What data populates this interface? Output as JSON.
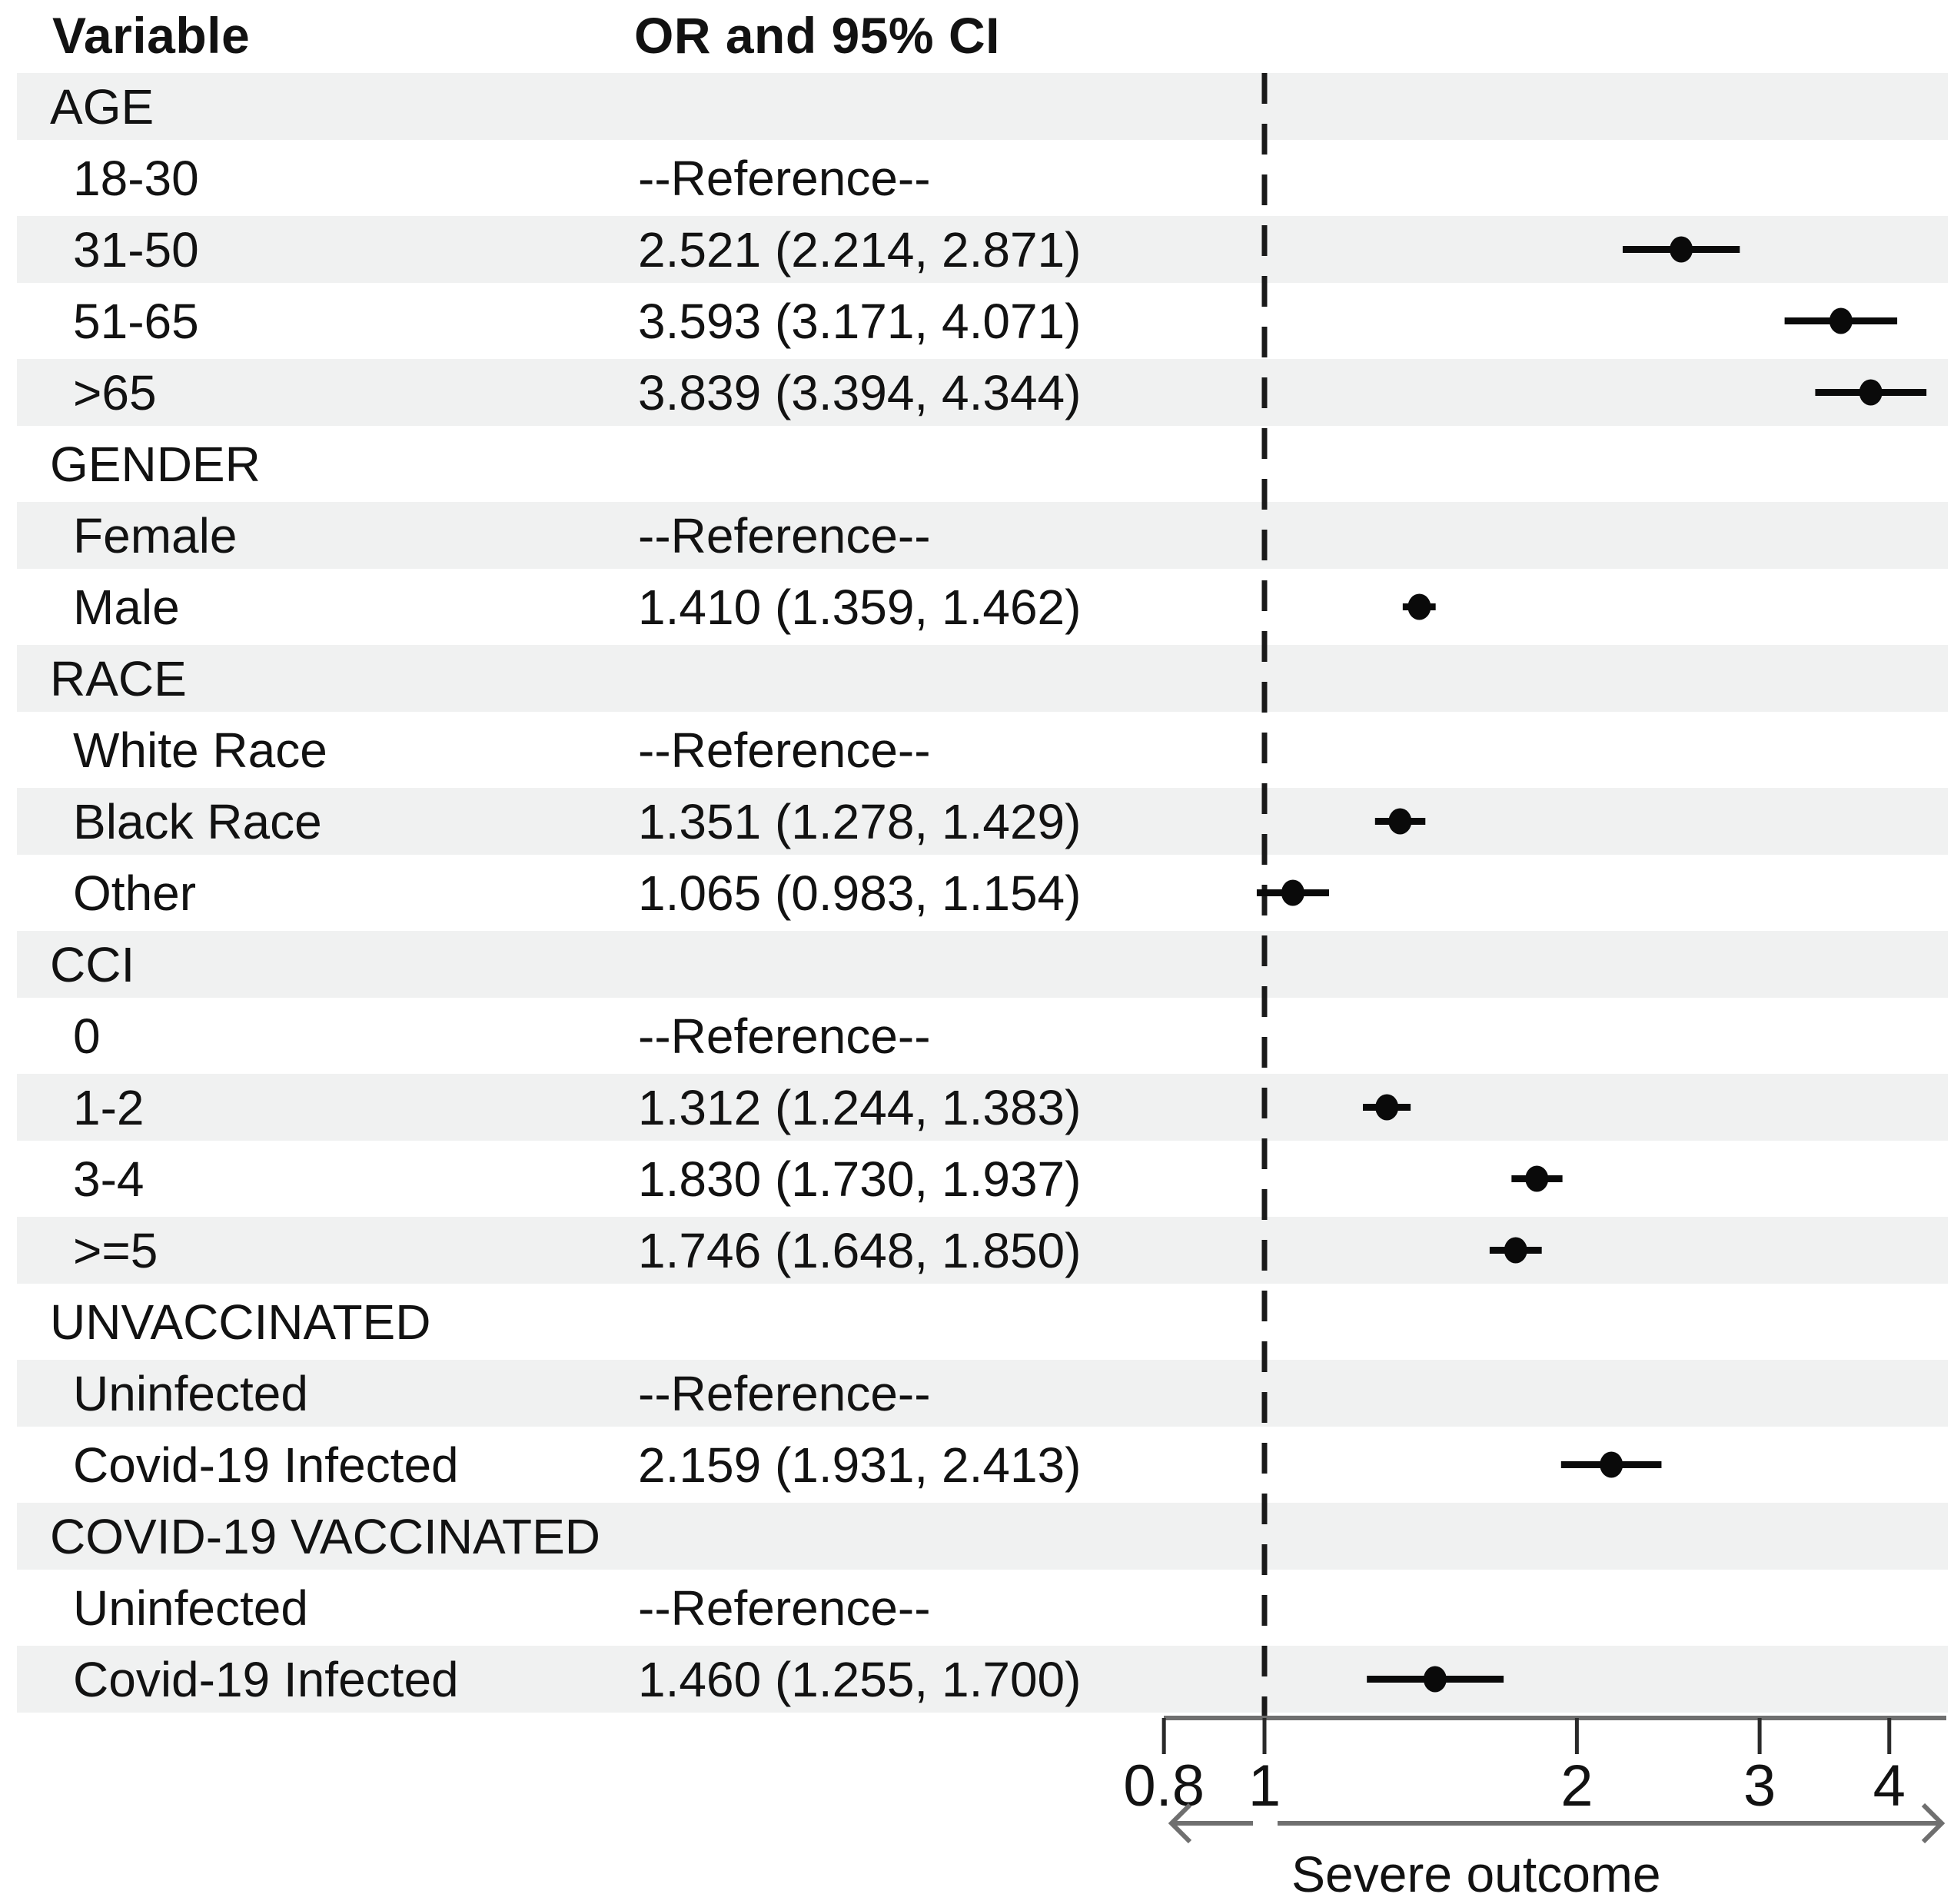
{
  "header": {
    "variable_col": "Variable",
    "or_col": "OR and 95% CI"
  },
  "axis": {
    "tick_labels": [
      "0.8",
      "1",
      "2",
      "3",
      "4"
    ],
    "tick_values": [
      0.8,
      1,
      2,
      3,
      4
    ],
    "xlabel": "Severe outcome",
    "reference_line_x": 1
  },
  "reference_text": "--Reference--",
  "colors": {
    "band": "#f0f1f1",
    "text": "#121212",
    "marker": "#0a0a0a",
    "ci_line": "#0a0a0a",
    "dashed_line": "#1a1a1a",
    "axis_line": "#6f6f6f",
    "tick_line": "#2a2a2a",
    "arrow": "#6f6f6f"
  },
  "chart_data": {
    "type": "scatter",
    "variant": "forest-plot",
    "title": "",
    "xlabel": "Severe outcome",
    "ylabel": "",
    "x_scale": "log",
    "x_ticks": [
      0.8,
      1,
      2,
      3,
      4
    ],
    "x_range": [
      0.75,
      4.6
    ],
    "reference_line_x": 1,
    "grid": false,
    "legend": false,
    "groups": [
      {
        "name": "AGE",
        "items": [
          {
            "label": "18-30",
            "or": null,
            "ci": null,
            "or_text": "--Reference--"
          },
          {
            "label": "31-50",
            "or": 2.521,
            "ci": [
              2.214,
              2.871
            ],
            "or_text": "2.521 (2.214, 2.871)"
          },
          {
            "label": "51-65",
            "or": 3.593,
            "ci": [
              3.171,
              4.071
            ],
            "or_text": "3.593 (3.171, 4.071)"
          },
          {
            "label": ">65",
            "or": 3.839,
            "ci": [
              3.394,
              4.344
            ],
            "or_text": "3.839 (3.394, 4.344)"
          }
        ]
      },
      {
        "name": "GENDER",
        "items": [
          {
            "label": "Female",
            "or": null,
            "ci": null,
            "or_text": "--Reference--"
          },
          {
            "label": "Male",
            "or": 1.41,
            "ci": [
              1.359,
              1.462
            ],
            "or_text": "1.410 (1.359, 1.462)"
          }
        ]
      },
      {
        "name": "RACE",
        "items": [
          {
            "label": "White Race",
            "or": null,
            "ci": null,
            "or_text": "--Reference--"
          },
          {
            "label": "Black Race",
            "or": 1.351,
            "ci": [
              1.278,
              1.429
            ],
            "or_text": "1.351 (1.278, 1.429)"
          },
          {
            "label": "Other",
            "or": 1.065,
            "ci": [
              0.983,
              1.154
            ],
            "or_text": "1.065 (0.983, 1.154)"
          }
        ]
      },
      {
        "name": "CCI",
        "items": [
          {
            "label": "0",
            "or": null,
            "ci": null,
            "or_text": "--Reference--"
          },
          {
            "label": "1-2",
            "or": 1.312,
            "ci": [
              1.244,
              1.383
            ],
            "or_text": "1.312 (1.244, 1.383)"
          },
          {
            "label": "3-4",
            "or": 1.83,
            "ci": [
              1.73,
              1.937
            ],
            "or_text": "1.830 (1.730, 1.937)"
          },
          {
            "label": ">=5",
            "or": 1.746,
            "ci": [
              1.648,
              1.85
            ],
            "or_text": "1.746 (1.648, 1.850)"
          }
        ]
      },
      {
        "name": "UNVACCINATED",
        "items": [
          {
            "label": "Uninfected",
            "or": null,
            "ci": null,
            "or_text": "--Reference--"
          },
          {
            "label": "Covid-19 Infected",
            "or": 2.159,
            "ci": [
              1.931,
              2.413
            ],
            "or_text": "2.159 (1.931, 2.413)"
          }
        ]
      },
      {
        "name": "COVID-19 VACCINATED",
        "items": [
          {
            "label": "Uninfected",
            "or": null,
            "ci": null,
            "or_text": "--Reference--"
          },
          {
            "label": "Covid-19 Infected",
            "or": 1.46,
            "ci": [
              1.255,
              1.7
            ],
            "or_text": "1.460 (1.255, 1.700)"
          }
        ]
      }
    ]
  }
}
